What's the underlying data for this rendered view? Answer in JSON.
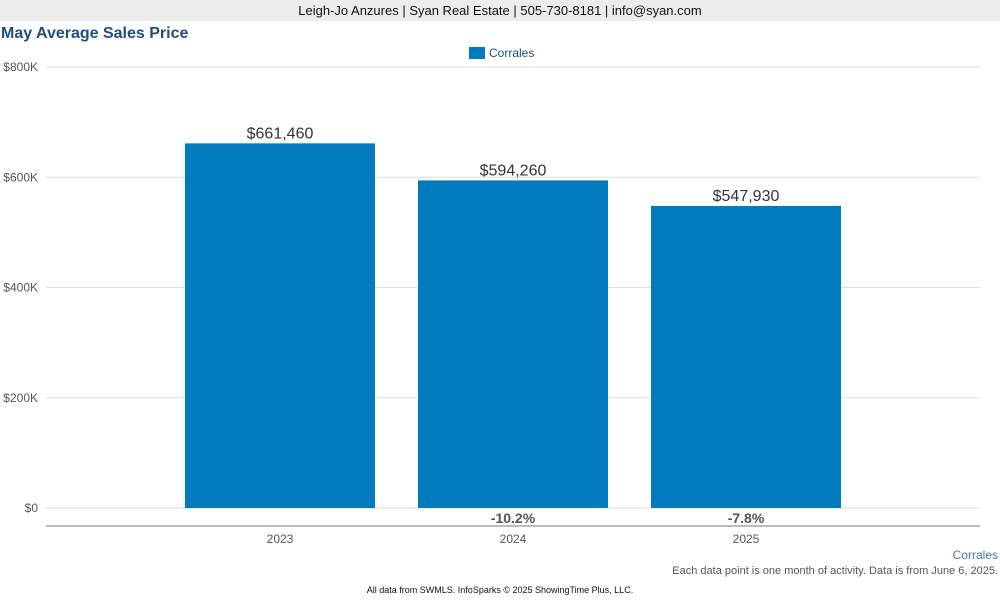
{
  "header": {
    "contact": "Leigh-Jo Anzures | Syan Real Estate | 505-730-8181 | info@syan.com"
  },
  "chart_data": {
    "type": "bar",
    "title": "May Average Sales Price",
    "categories": [
      "2023",
      "2024",
      "2025"
    ],
    "series": [
      {
        "name": "Corrales",
        "values": [
          661460,
          594260,
          547930
        ],
        "color": "#007bbd"
      }
    ],
    "value_labels": [
      "$661,460",
      "$594,260",
      "$547,930"
    ],
    "change_labels": [
      "",
      "-10.2%",
      "-7.8%"
    ],
    "y_ticks": [
      {
        "value": 0,
        "label": "$0"
      },
      {
        "value": 200000,
        "label": "$200K"
      },
      {
        "value": 400000,
        "label": "$400K"
      },
      {
        "value": 600000,
        "label": "$600K"
      },
      {
        "value": 800000,
        "label": "$800K"
      }
    ],
    "ylim": [
      0,
      800000
    ],
    "grid": true,
    "legend_position": "top-center",
    "xlabel": "",
    "ylabel": ""
  },
  "footer": {
    "series_note": "Corrales",
    "note": "Each data point is one month of activity. Data is from June 6, 2025.",
    "copyright": "All data from SWMLS. InfoSparks © 2025 ShowingTime Plus, LLC."
  }
}
